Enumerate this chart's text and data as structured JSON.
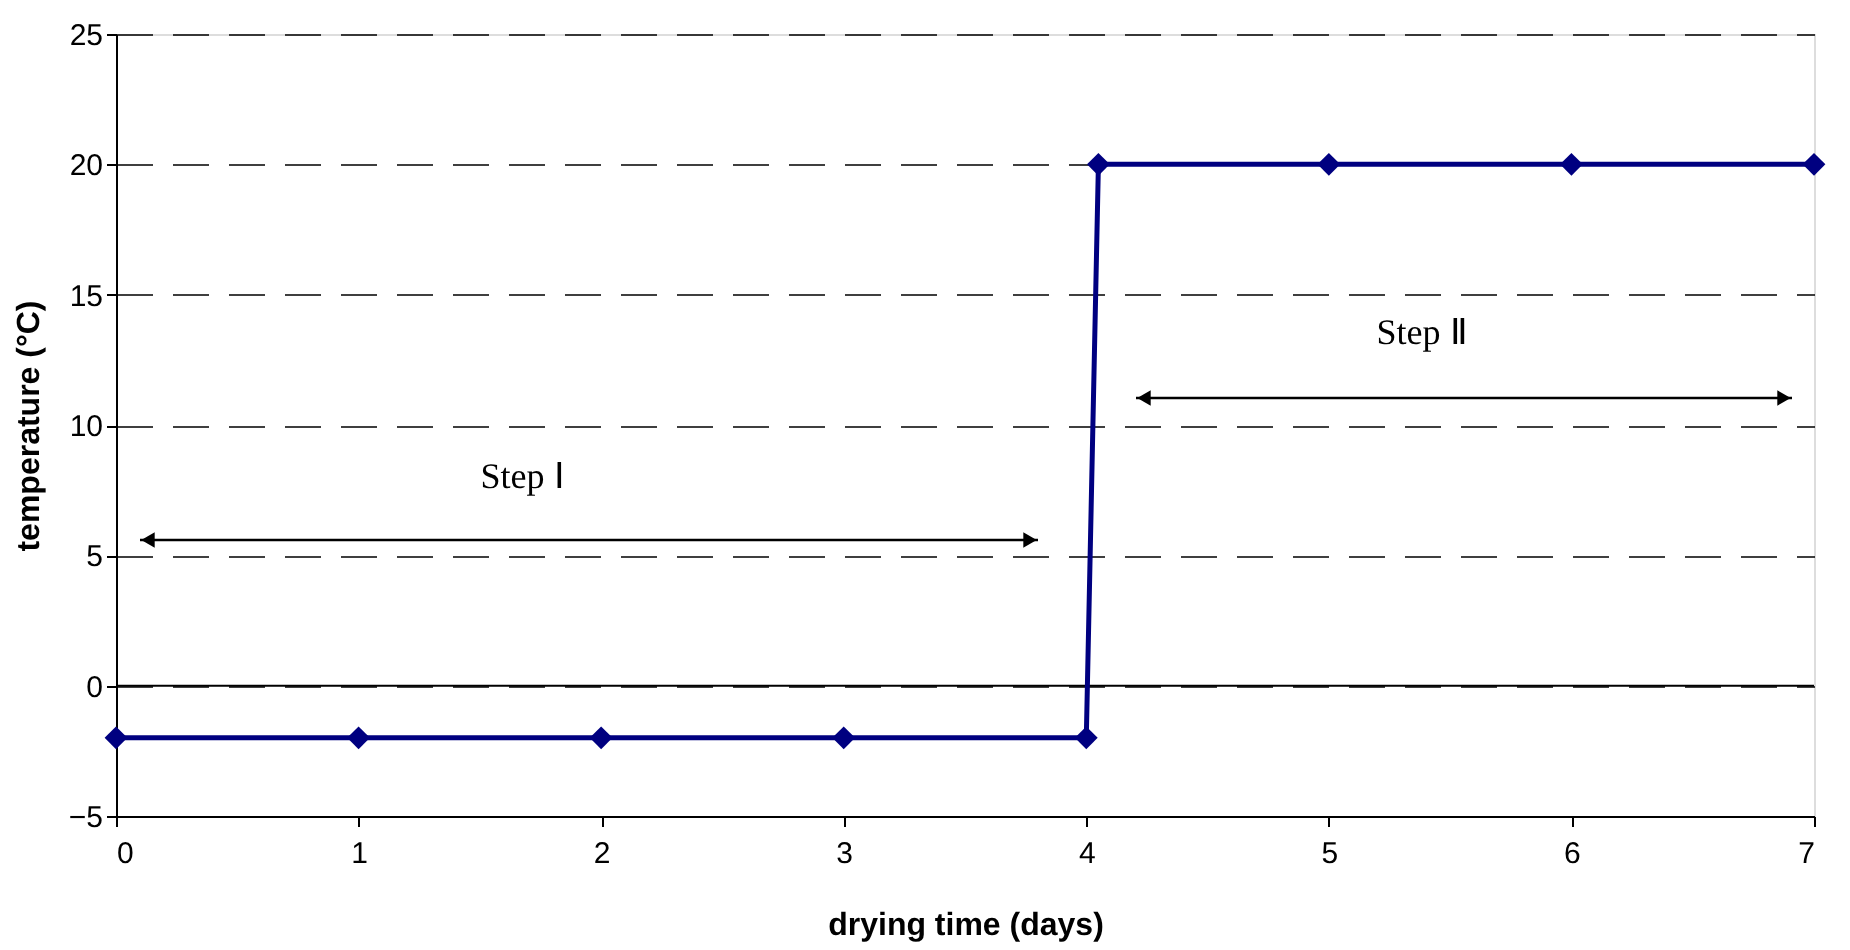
{
  "chart_data": {
    "type": "line",
    "xlabel": "drying time (days)",
    "ylabel": "temperature (°C)",
    "x": [
      0,
      1,
      2,
      3,
      4,
      4.05,
      5,
      6,
      7
    ],
    "series": [
      {
        "color": "#000080",
        "values": [
          -2,
          -2,
          -2,
          -2,
          -2,
          20,
          20,
          20,
          20
        ]
      }
    ],
    "xlim": [
      0,
      7
    ],
    "xticks": [
      0,
      1,
      2,
      3,
      4,
      5,
      6,
      7
    ],
    "annotations": [
      "Step Ⅰ",
      "Step Ⅱ"
    ],
    "ylim": [
      -5,
      25
    ],
    "yticks": [
      -5,
      0,
      5,
      10,
      15,
      20,
      25
    ],
    "grid": "y",
    "marker": "diamond",
    "line_style": "solid",
    "ref_lines": [
      {
        "axis": "y",
        "value": 0,
        "color": "#000000",
        "line_style": "solid"
      }
    ]
  }
}
